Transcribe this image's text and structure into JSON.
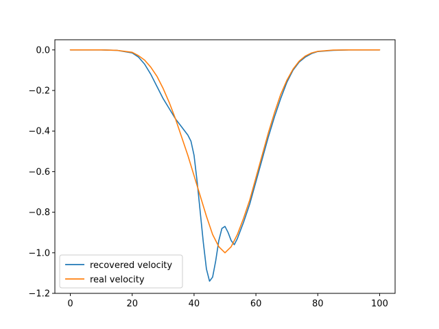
{
  "chart_data": {
    "type": "line",
    "title": "",
    "xlabel": "",
    "ylabel": "",
    "xlim": [
      -5,
      105
    ],
    "ylim": [
      -1.2,
      0.05
    ],
    "xticks": [
      0,
      20,
      40,
      60,
      80,
      100
    ],
    "xtick_labels": [
      "0",
      "20",
      "40",
      "60",
      "80",
      "100"
    ],
    "yticks": [
      0.0,
      -0.2,
      -0.4,
      -0.6,
      -0.8,
      -1.0,
      -1.2
    ],
    "ytick_labels": [
      "0.0",
      "−0.2",
      "−0.4",
      "−0.6",
      "−0.8",
      "−1.0",
      "−1.2"
    ],
    "grid": false,
    "legend_position": "lower-left",
    "series": [
      {
        "name": "recovered velocity",
        "color": "#1f77b4",
        "x": [
          0,
          5,
          10,
          15,
          20,
          22,
          24,
          26,
          28,
          30,
          32,
          34,
          36,
          38,
          39,
          40,
          41,
          42,
          43,
          44,
          45,
          46,
          47,
          48,
          49,
          50,
          51,
          52,
          53,
          54,
          56,
          58,
          60,
          62,
          64,
          66,
          68,
          70,
          72,
          74,
          76,
          78,
          80,
          85,
          90,
          95,
          100
        ],
        "y": [
          0.0,
          0.0,
          0.0,
          -0.002,
          -0.015,
          -0.035,
          -0.07,
          -0.12,
          -0.18,
          -0.24,
          -0.29,
          -0.34,
          -0.38,
          -0.42,
          -0.45,
          -0.52,
          -0.65,
          -0.8,
          -0.95,
          -1.08,
          -1.14,
          -1.12,
          -1.04,
          -0.94,
          -0.88,
          -0.87,
          -0.9,
          -0.94,
          -0.96,
          -0.93,
          -0.85,
          -0.76,
          -0.65,
          -0.54,
          -0.43,
          -0.33,
          -0.24,
          -0.16,
          -0.1,
          -0.06,
          -0.035,
          -0.018,
          -0.008,
          -0.002,
          0.0,
          0.0,
          0.0
        ]
      },
      {
        "name": "real velocity",
        "color": "#ff7f0e",
        "x": [
          0,
          5,
          10,
          15,
          20,
          22,
          24,
          26,
          28,
          30,
          32,
          34,
          36,
          38,
          40,
          42,
          44,
          46,
          48,
          50,
          52,
          54,
          56,
          58,
          60,
          62,
          64,
          66,
          68,
          70,
          72,
          74,
          76,
          78,
          80,
          85,
          90,
          95,
          100
        ],
        "y": [
          0.0,
          0.0,
          0.0,
          -0.002,
          -0.012,
          -0.028,
          -0.05,
          -0.085,
          -0.13,
          -0.19,
          -0.26,
          -0.34,
          -0.43,
          -0.52,
          -0.62,
          -0.72,
          -0.82,
          -0.91,
          -0.97,
          -1.0,
          -0.97,
          -0.91,
          -0.83,
          -0.74,
          -0.63,
          -0.52,
          -0.41,
          -0.31,
          -0.22,
          -0.15,
          -0.095,
          -0.055,
          -0.03,
          -0.015,
          -0.007,
          -0.001,
          0.0,
          0.0,
          0.0
        ]
      }
    ]
  }
}
